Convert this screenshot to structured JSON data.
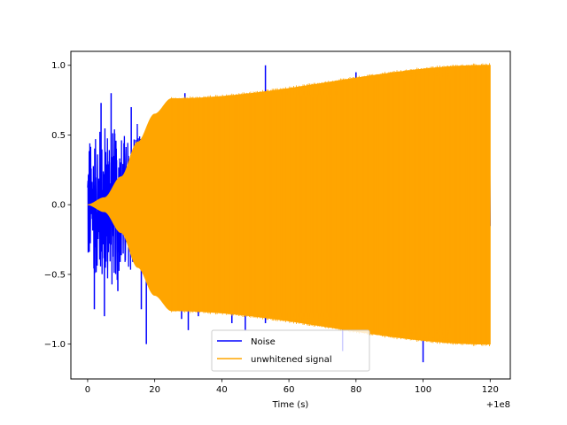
{
  "chart_data": {
    "type": "line",
    "title": "",
    "xlabel": "Time (s)",
    "ylabel": "",
    "x_offset_label": "+1e8",
    "xlim": [
      -5,
      126
    ],
    "ylim": [
      -1.25,
      1.1
    ],
    "x_ticks": [
      0,
      20,
      40,
      60,
      80,
      100,
      120
    ],
    "x_tick_labels": [
      "0",
      "20",
      "40",
      "60",
      "80",
      "100",
      "120"
    ],
    "y_ticks": [
      -1.0,
      -0.5,
      0.0,
      0.5,
      1.0
    ],
    "y_tick_labels": [
      "−1.0",
      "−0.5",
      "0.0",
      "0.5",
      "1.0"
    ],
    "grid": false,
    "legend_position": "bottom-center",
    "series": [
      {
        "name": "Noise",
        "color": "#0000ff",
        "x_range": [
          0,
          120
        ],
        "envelope": [
          [
            0,
            0.55
          ],
          [
            5,
            0.65
          ],
          [
            10,
            0.6
          ],
          [
            15,
            0.6
          ],
          [
            18,
            0.55
          ],
          [
            20,
            0.5
          ],
          [
            120,
            0.5
          ]
        ],
        "peaks": [
          {
            "x": 2,
            "y": -0.75
          },
          {
            "x": 4,
            "y": 0.73
          },
          {
            "x": 5,
            "y": -0.8
          },
          {
            "x": 7,
            "y": 0.8
          },
          {
            "x": 9,
            "y": -0.62
          },
          {
            "x": 13,
            "y": 0.7
          },
          {
            "x": 16,
            "y": -0.75
          },
          {
            "x": 17.5,
            "y": -1.0
          },
          {
            "x": 29,
            "y": 0.8
          },
          {
            "x": 28,
            "y": -0.82
          },
          {
            "x": 30,
            "y": -0.9
          },
          {
            "x": 33,
            "y": -0.8
          },
          {
            "x": 43,
            "y": -0.85
          },
          {
            "x": 47,
            "y": -0.9
          },
          {
            "x": 53,
            "y": 1.0
          },
          {
            "x": 53,
            "y": -0.85
          },
          {
            "x": 76,
            "y": -1.05
          },
          {
            "x": 80,
            "y": 0.95
          },
          {
            "x": 92,
            "y": 0.95
          },
          {
            "x": 100,
            "y": -1.13
          }
        ]
      },
      {
        "name": "unwhitened signal",
        "color": "#ffa500",
        "x_range": [
          0,
          120
        ],
        "envelope": [
          [
            0,
            0.0
          ],
          [
            5,
            0.05
          ],
          [
            10,
            0.2
          ],
          [
            15,
            0.45
          ],
          [
            20,
            0.65
          ],
          [
            25,
            0.76
          ],
          [
            120,
            1.0
          ]
        ]
      }
    ]
  }
}
